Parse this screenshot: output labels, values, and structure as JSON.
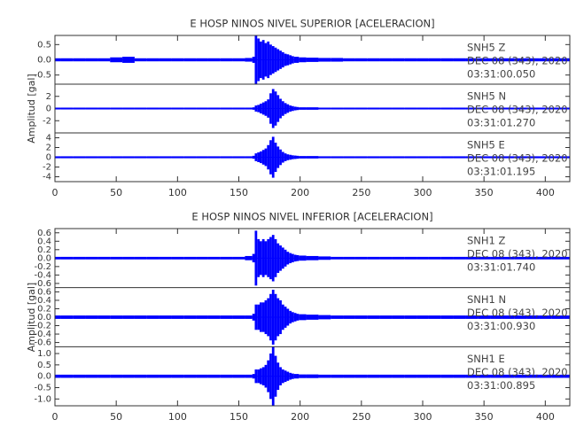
{
  "chart_data": [
    {
      "type": "seismogram",
      "title": "E HOSP NINOS NIVEL SUPERIOR [ACELERACION]",
      "y_label": "Amplitud [gal]",
      "xlim": [
        0,
        420
      ],
      "xticks": [
        0,
        50,
        100,
        150,
        200,
        250,
        300,
        350,
        400
      ],
      "x": [
        0,
        10,
        20,
        30,
        40,
        50,
        60,
        70,
        80,
        90,
        100,
        110,
        120,
        130,
        140,
        150,
        160,
        162,
        164,
        166,
        168,
        170,
        172,
        174,
        176,
        178,
        180,
        182,
        184,
        186,
        188,
        190,
        192,
        194,
        196,
        198,
        200,
        210,
        220,
        230,
        240,
        250,
        260,
        270,
        280,
        290,
        300,
        310,
        320,
        330,
        340,
        350,
        360,
        370,
        380,
        390,
        400,
        410,
        420
      ],
      "traces": [
        {
          "text_lines": [
            "SNH5   Z",
            "DEC 08 (343), 2020",
            "03:31:00.050"
          ],
          "color": "#0000ff",
          "ylim": [
            -0.8,
            0.8
          ],
          "yticks": [
            -0.5,
            {
              "value": 0,
              "label": "0.0"
            },
            0.5
          ],
          "values": [
            0.05,
            0.05,
            0.05,
            0.05,
            0.05,
            0.08,
            0.1,
            0.05,
            0.05,
            0.05,
            0.05,
            0.05,
            0.05,
            0.05,
            0.05,
            0.05,
            0.06,
            0.1,
            0.8,
            0.7,
            0.6,
            0.65,
            0.55,
            0.6,
            0.5,
            0.45,
            0.4,
            0.35,
            0.3,
            0.25,
            0.2,
            0.18,
            0.15,
            0.12,
            0.1,
            0.1,
            0.08,
            0.07,
            0.06,
            0.06,
            0.05,
            0.05,
            0.05,
            0.05,
            0.05,
            0.05,
            0.05,
            0.05,
            0.05,
            0.05,
            0.05,
            0.05,
            0.05,
            0.05,
            0.05,
            0.05,
            0.05,
            0.05,
            0.05
          ]
        },
        {
          "text_lines": [
            "SNH5   N",
            "DEC 08 (343), 2020",
            "03:31:01.270"
          ],
          "color": "#0000ff",
          "ylim": [
            -4,
            4
          ],
          "yticks": [
            -2,
            0,
            2
          ],
          "values": [
            0.15,
            0.15,
            0.15,
            0.15,
            0.15,
            0.15,
            0.15,
            0.15,
            0.15,
            0.15,
            0.15,
            0.15,
            0.15,
            0.15,
            0.15,
            0.15,
            0.15,
            0.2,
            0.5,
            0.6,
            0.8,
            1.0,
            1.2,
            1.5,
            2.5,
            3.2,
            2.8,
            2.2,
            1.6,
            1.2,
            0.9,
            0.7,
            0.5,
            0.4,
            0.3,
            0.25,
            0.2,
            0.2,
            0.15,
            0.15,
            0.15,
            0.15,
            0.15,
            0.15,
            0.15,
            0.15,
            0.15,
            0.15,
            0.15,
            0.15,
            0.15,
            0.15,
            0.15,
            0.15,
            0.15,
            0.15,
            0.15,
            0.15,
            0.15
          ]
        },
        {
          "text_lines": [
            "SNH5   E",
            "DEC 08 (343), 2020",
            "03:31:01.195"
          ],
          "color": "#0000ff",
          "ylim": [
            -5,
            5
          ],
          "yticks": [
            -4,
            -2,
            0,
            2,
            4
          ],
          "values": [
            0.2,
            0.2,
            0.2,
            0.2,
            0.2,
            0.2,
            0.2,
            0.2,
            0.2,
            0.2,
            0.2,
            0.2,
            0.2,
            0.2,
            0.2,
            0.2,
            0.2,
            0.3,
            0.8,
            1.0,
            1.2,
            1.5,
            1.8,
            2.5,
            3.5,
            4.2,
            3.0,
            2.2,
            1.6,
            1.1,
            0.8,
            0.6,
            0.5,
            0.4,
            0.35,
            0.3,
            0.25,
            0.25,
            0.2,
            0.2,
            0.2,
            0.2,
            0.2,
            0.2,
            0.2,
            0.2,
            0.2,
            0.2,
            0.2,
            0.2,
            0.2,
            0.2,
            0.2,
            0.2,
            0.2,
            0.2,
            0.2,
            0.2,
            0.2
          ]
        }
      ]
    },
    {
      "type": "seismogram",
      "title": "E HOSP NINOS NIVEL INFERIOR [ACELERACION]",
      "y_label": "Amplitud [gal]",
      "xlim": [
        0,
        420
      ],
      "xticks": [
        0,
        50,
        100,
        150,
        200,
        250,
        300,
        350,
        400
      ],
      "x": [
        0,
        10,
        20,
        30,
        40,
        50,
        60,
        70,
        80,
        90,
        100,
        110,
        120,
        130,
        140,
        150,
        160,
        162,
        164,
        166,
        168,
        170,
        172,
        174,
        176,
        178,
        180,
        182,
        184,
        186,
        188,
        190,
        192,
        194,
        196,
        198,
        200,
        210,
        220,
        230,
        240,
        250,
        260,
        270,
        280,
        290,
        300,
        310,
        320,
        330,
        340,
        350,
        360,
        370,
        380,
        390,
        400,
        410,
        420
      ],
      "traces": [
        {
          "text_lines": [
            "SNH1   Z",
            "DEC 08 (343), 2020",
            "03:31:01.740"
          ],
          "color": "#0000ff",
          "ylim": [
            -0.7,
            0.7
          ],
          "yticks": [
            -0.6,
            -0.4,
            -0.2,
            {
              "value": 0,
              "label": "0.0"
            },
            0.2,
            0.4,
            0.6
          ],
          "values": [
            0.03,
            0.03,
            0.03,
            0.03,
            0.03,
            0.03,
            0.03,
            0.03,
            0.03,
            0.03,
            0.03,
            0.03,
            0.03,
            0.03,
            0.03,
            0.03,
            0.05,
            0.1,
            0.65,
            0.45,
            0.4,
            0.45,
            0.4,
            0.45,
            0.5,
            0.55,
            0.45,
            0.35,
            0.3,
            0.25,
            0.2,
            0.15,
            0.12,
            0.1,
            0.08,
            0.07,
            0.06,
            0.05,
            0.04,
            0.03,
            0.03,
            0.03,
            0.03,
            0.03,
            0.03,
            0.03,
            0.03,
            0.03,
            0.03,
            0.03,
            0.03,
            0.03,
            0.03,
            0.03,
            0.03,
            0.03,
            0.03,
            0.03,
            0.03
          ]
        },
        {
          "text_lines": [
            "SNH1   N",
            "DEC 08 (343), 2020",
            "03:31:00.930"
          ],
          "color": "#0000ff",
          "ylim": [
            -0.7,
            0.7
          ],
          "yticks": [
            -0.6,
            -0.4,
            -0.2,
            {
              "value": 0,
              "label": "0.0"
            },
            0.2,
            0.4,
            0.6
          ],
          "values": [
            0.04,
            0.04,
            0.04,
            0.04,
            0.04,
            0.04,
            0.04,
            0.04,
            0.04,
            0.04,
            0.04,
            0.04,
            0.04,
            0.04,
            0.04,
            0.04,
            0.04,
            0.08,
            0.3,
            0.3,
            0.35,
            0.35,
            0.4,
            0.45,
            0.55,
            0.65,
            0.55,
            0.45,
            0.4,
            0.3,
            0.25,
            0.2,
            0.15,
            0.12,
            0.1,
            0.08,
            0.07,
            0.06,
            0.05,
            0.04,
            0.04,
            0.04,
            0.04,
            0.04,
            0.04,
            0.04,
            0.04,
            0.04,
            0.04,
            0.04,
            0.04,
            0.04,
            0.04,
            0.04,
            0.04,
            0.04,
            0.04,
            0.04,
            0.04
          ]
        },
        {
          "text_lines": [
            "SNH1   E",
            "DEC 08 (343), 2020",
            "03:31:00.895"
          ],
          "color": "#0000ff",
          "ylim": [
            -1.3,
            1.3
          ],
          "yticks": [
            {
              "value": -1,
              "label": "-1.0"
            },
            -0.5,
            {
              "value": 0,
              "label": "0.0"
            },
            0.5,
            {
              "value": 1,
              "label": "1.0"
            }
          ],
          "values": [
            0.07,
            0.07,
            0.07,
            0.07,
            0.07,
            0.07,
            0.07,
            0.07,
            0.07,
            0.07,
            0.07,
            0.07,
            0.07,
            0.07,
            0.07,
            0.07,
            0.07,
            0.1,
            0.3,
            0.3,
            0.35,
            0.4,
            0.5,
            0.7,
            1.0,
            1.3,
            0.9,
            0.6,
            0.4,
            0.3,
            0.25,
            0.2,
            0.15,
            0.12,
            0.1,
            0.1,
            0.08,
            0.08,
            0.07,
            0.07,
            0.07,
            0.07,
            0.07,
            0.07,
            0.07,
            0.07,
            0.07,
            0.07,
            0.07,
            0.07,
            0.07,
            0.07,
            0.07,
            0.07,
            0.07,
            0.07,
            0.07,
            0.07,
            0.07
          ]
        }
      ]
    }
  ]
}
